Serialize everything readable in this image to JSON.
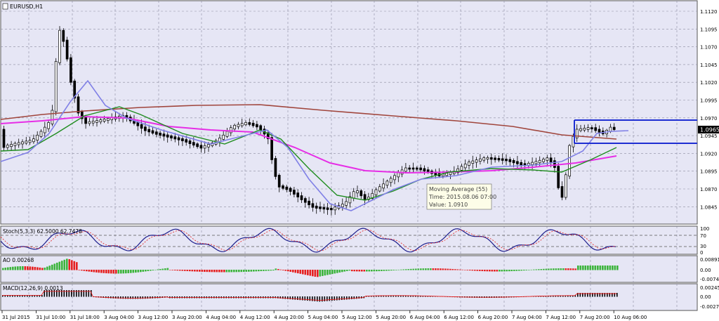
{
  "symbol_label": "EURUSD,H1",
  "current_price": "1.0965",
  "price_axis": [
    "1.1120",
    "1.1095",
    "1.1070",
    "1.1045",
    "1.1020",
    "1.0995",
    "1.0970",
    "1.0945",
    "1.0920",
    "1.0895",
    "1.0870",
    "1.0845"
  ],
  "tooltip": {
    "line1": "Moving Average (55)",
    "line2": "Time: 2015.08.06 07:00",
    "line3": "Value: 1.0910"
  },
  "stoch": {
    "label": "Stoch(5,3,3) 62.5000 62.7478",
    "axis": [
      "100",
      "70",
      "30",
      "0"
    ]
  },
  "ao": {
    "label": "AO 0.00268",
    "axis": [
      "0.00891",
      "0.00",
      "-0.00741"
    ]
  },
  "macd": {
    "label": "MACD(12,26,9) 0.0013",
    "axis": [
      "0.00245",
      "0.00",
      "-0.00279"
    ]
  },
  "time_axis": [
    "31 Jul 2015",
    "31 Jul 10:00",
    "31 Jul 18:00",
    "3 Aug 04:00",
    "3 Aug 12:00",
    "3 Aug 20:00",
    "4 Aug 04:00",
    "4 Aug 12:00",
    "4 Aug 20:00",
    "5 Aug 04:00",
    "5 Aug 12:00",
    "5 Aug 20:00",
    "6 Aug 04:00",
    "6 Aug 12:00",
    "6 Aug 20:00",
    "7 Aug 04:00",
    "7 Aug 12:00",
    "7 Aug 20:00",
    "10 Aug 06:00"
  ],
  "colors": {
    "background": "#e6e6f5",
    "grid": "#8c8ca0",
    "ma_long": "#a0453c",
    "ma_magenta": "#e62ee6",
    "ma_green": "#1f8c1f",
    "ma_blue": "#8080e6",
    "bull": "#3cb43c",
    "bear": "#e62020",
    "hline": "#1e2ed2"
  }
}
